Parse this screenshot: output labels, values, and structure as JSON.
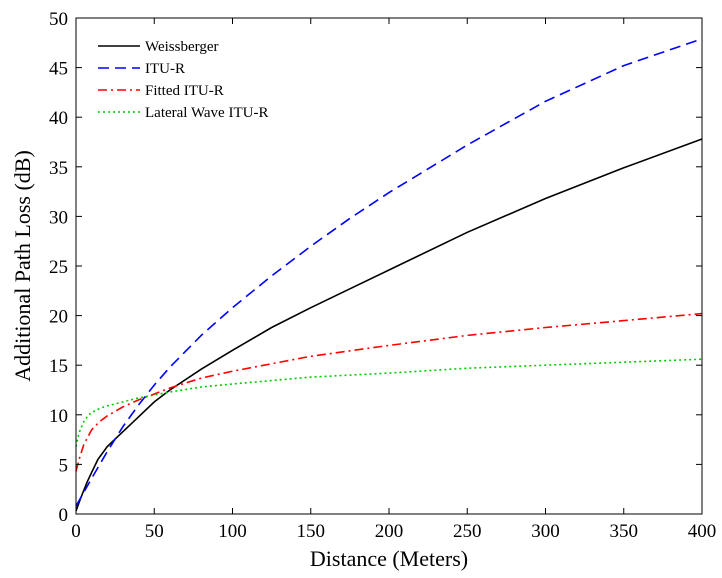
{
  "chart_data": {
    "type": "line",
    "xlabel": "Distance (Meters)",
    "ylabel": "Additional Path Loss (dB)",
    "xlim": [
      0,
      400
    ],
    "ylim": [
      0,
      50
    ],
    "xticks": [
      0,
      50,
      100,
      150,
      200,
      250,
      300,
      350,
      400
    ],
    "yticks": [
      0,
      5,
      10,
      15,
      20,
      25,
      30,
      35,
      40,
      45,
      50
    ],
    "grid": false,
    "legend_position": "top-left",
    "series": [
      {
        "name": "Weissberger",
        "color": "#000000",
        "style": "solid",
        "x": [
          0,
          3,
          7,
          10,
          14,
          20,
          30,
          40,
          50,
          60,
          80,
          100,
          125,
          150,
          175,
          200,
          250,
          300,
          350,
          400
        ],
        "y": [
          0.3,
          1.6,
          3.2,
          4.2,
          5.5,
          6.8,
          8.3,
          9.8,
          11.3,
          12.5,
          14.6,
          16.5,
          18.8,
          20.8,
          22.7,
          24.6,
          28.4,
          31.8,
          34.9,
          37.8
        ]
      },
      {
        "name": "ITU-R",
        "color": "#0000ff",
        "style": "dashed",
        "x": [
          0,
          5,
          10,
          20,
          30,
          40,
          50,
          60,
          80,
          100,
          125,
          150,
          175,
          200,
          250,
          300,
          350,
          400
        ],
        "y": [
          0.8,
          2.2,
          3.6,
          6.3,
          8.8,
          11.0,
          13.0,
          14.8,
          18.0,
          20.8,
          24.0,
          27.0,
          29.8,
          32.4,
          37.2,
          41.6,
          45.2,
          47.9
        ]
      },
      {
        "name": "Fitted ITU-R",
        "color": "#ff0000",
        "style": "dashdot",
        "x": [
          0,
          2,
          5,
          10,
          15,
          20,
          30,
          40,
          50,
          60,
          80,
          100,
          150,
          200,
          250,
          300,
          350,
          400
        ],
        "y": [
          4.3,
          5.5,
          7.0,
          8.5,
          9.3,
          9.9,
          10.8,
          11.5,
          12.1,
          12.7,
          13.7,
          14.4,
          15.9,
          17.0,
          18.0,
          18.8,
          19.5,
          20.2
        ]
      },
      {
        "name": "Lateral Wave ITU-R",
        "color": "#00cc00",
        "style": "dotted",
        "x": [
          0,
          2,
          5,
          8,
          12,
          16,
          20,
          30,
          40,
          50,
          60,
          80,
          100,
          150,
          200,
          250,
          300,
          350,
          400
        ],
        "y": [
          6.8,
          8.2,
          9.3,
          10.0,
          10.4,
          10.7,
          10.9,
          11.3,
          11.7,
          12.0,
          12.3,
          12.8,
          13.1,
          13.8,
          14.2,
          14.7,
          15.0,
          15.3,
          15.6
        ]
      }
    ]
  }
}
